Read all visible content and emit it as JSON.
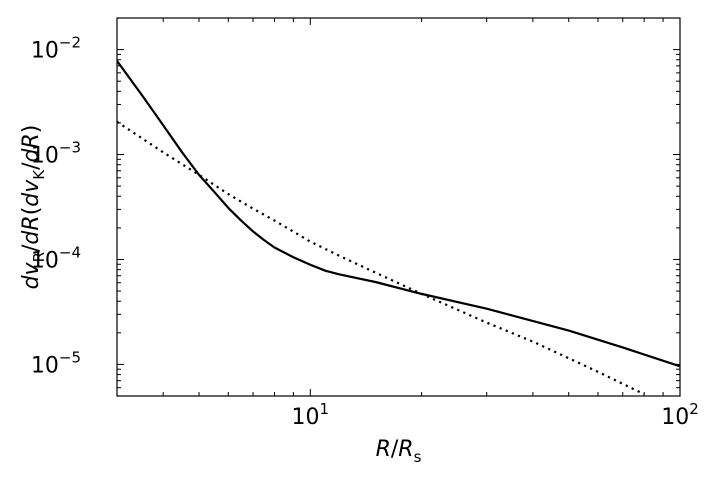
{
  "chart_data": {
    "type": "line",
    "xscale": "log",
    "yscale": "log",
    "xlim": [
      3,
      100
    ],
    "ylim": [
      5e-06,
      0.02
    ],
    "xlabel": "R/R_s",
    "ylabel": "dv_R/dR(dv_K/dR)",
    "x_tick_labels": [
      {
        "value": 10,
        "base": "10",
        "exp": "1"
      },
      {
        "value": 100,
        "base": "10",
        "exp": "2"
      }
    ],
    "y_tick_labels": [
      {
        "value": 0.01,
        "base": "10",
        "exp": "−2"
      },
      {
        "value": 0.001,
        "base": "10",
        "exp": "−3"
      },
      {
        "value": 0.0001,
        "base": "10",
        "exp": "−4"
      },
      {
        "value": 1e-05,
        "base": "10",
        "exp": "−5"
      }
    ],
    "grid": false,
    "series": [
      {
        "style": "solid",
        "color": "#000000",
        "points": [
          [
            3.0,
            0.0078
          ],
          [
            3.5,
            0.0037
          ],
          [
            4.0,
            0.0019
          ],
          [
            4.5,
            0.00105
          ],
          [
            5.0,
            0.00064
          ],
          [
            5.5,
            0.00044
          ],
          [
            6.0,
            0.00031
          ],
          [
            6.5,
            0.000235
          ],
          [
            7.0,
            0.000185
          ],
          [
            7.5,
            0.000153
          ],
          [
            8.0,
            0.00013
          ],
          [
            9.0,
            0.000105
          ],
          [
            10.0,
            8.9e-05
          ],
          [
            11.0,
            7.8e-05
          ],
          [
            12.0,
            7.2e-05
          ],
          [
            15.0,
            6.1e-05
          ],
          [
            20.0,
            4.7e-05
          ],
          [
            30.0,
            3.4e-05
          ],
          [
            50.0,
            2.1e-05
          ],
          [
            70.0,
            1.45e-05
          ],
          [
            100.0,
            9.6e-06
          ]
        ]
      },
      {
        "style": "dotted",
        "color": "#000000",
        "points": [
          [
            3.0,
            0.00205
          ],
          [
            4.0,
            0.00105
          ],
          [
            5.0,
            0.00064
          ],
          [
            6.0,
            0.00042
          ],
          [
            7.0,
            0.000305
          ],
          [
            8.0,
            0.000235
          ],
          [
            10.0,
            0.000148
          ],
          [
            12.0,
            0.000108
          ],
          [
            15.0,
            7.5e-05
          ],
          [
            20.0,
            4.7e-05
          ],
          [
            30.0,
            2.5e-05
          ],
          [
            40.0,
            1.65e-05
          ],
          [
            60.0,
            8.5e-06
          ],
          [
            80.0,
            5.2e-06
          ]
        ]
      }
    ]
  }
}
